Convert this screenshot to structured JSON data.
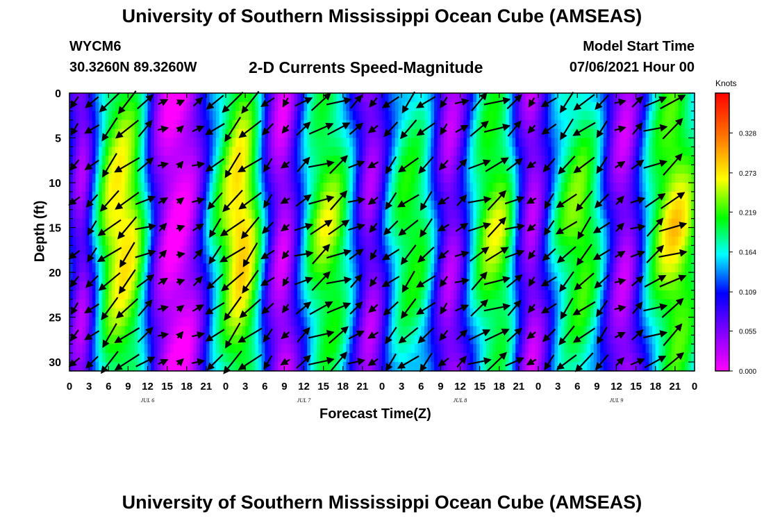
{
  "header": {
    "title": "University of Southern Mississippi Ocean Cube (AMSEAS)",
    "station_id": "WYCM6",
    "station_coords": "30.3260N  89.3260W",
    "subtitle": "2-D Currents Speed-Magnitude",
    "model_label": "Model Start Time",
    "model_value": "07/06/2021 Hour 00"
  },
  "footer": {
    "title": "University of Southern Mississippi Ocean Cube (AMSEAS)"
  },
  "chart_data": {
    "type": "heatmap",
    "title": "2-D Currents Speed-Magnitude",
    "xlabel": "Forecast Time(Z)",
    "ylabel": "Depth (ft)",
    "x_ticks": [
      "0",
      "3",
      "6",
      "9",
      "12",
      "15",
      "18",
      "21",
      "0",
      "3",
      "6",
      "9",
      "12",
      "15",
      "18",
      "21",
      "0",
      "3",
      "6",
      "9",
      "12",
      "15",
      "18",
      "21",
      "0",
      "3",
      "6",
      "9",
      "12",
      "15",
      "18",
      "21",
      "0"
    ],
    "date_labels": [
      "JUL 6",
      "JUL 7",
      "JUL 8",
      "JUL 9"
    ],
    "xlim_hours": [
      0,
      96
    ],
    "y_ticks": [
      0,
      5,
      10,
      15,
      20,
      25,
      30
    ],
    "ylim": [
      0,
      31
    ],
    "y_inverted": true,
    "colorbar": {
      "unit": "Knots",
      "ticks": [
        "0.328",
        "0.273",
        "0.219",
        "0.164",
        "0.109",
        "0.055",
        "0.000"
      ],
      "range": [
        0.0,
        0.383
      ],
      "colors": [
        "#ff00ff",
        "#8000ff",
        "#0000ff",
        "#00ffff",
        "#00ff00",
        "#ffff00",
        "#ff8000",
        "#ff0000"
      ]
    },
    "speed_profile_hours": [
      0,
      1,
      2,
      3,
      4,
      5,
      6,
      7,
      8,
      9,
      10,
      11,
      12,
      13,
      14,
      15,
      16,
      17,
      18,
      19,
      20,
      21,
      22,
      23,
      24,
      25,
      26,
      27,
      28,
      29,
      30,
      31,
      32,
      33,
      34,
      35,
      36,
      37,
      38,
      39,
      40,
      41,
      42,
      43,
      44,
      45,
      46,
      47,
      48,
      49,
      50,
      51,
      52,
      53,
      54,
      55,
      56,
      57,
      58,
      59,
      60,
      61,
      62,
      63,
      64,
      65,
      66,
      67,
      68,
      69,
      70,
      71,
      72,
      73,
      74,
      75,
      76,
      77,
      78,
      79,
      80,
      81,
      82,
      83,
      84,
      85,
      86,
      87,
      88,
      89,
      90,
      91,
      92,
      93,
      94,
      95,
      96
    ],
    "speed_profile_knots": [
      0.12,
      0.07,
      0.05,
      0.09,
      0.16,
      0.22,
      0.27,
      0.29,
      0.3,
      0.29,
      0.27,
      0.22,
      0.16,
      0.09,
      0.05,
      0.02,
      0.01,
      0.01,
      0.02,
      0.04,
      0.08,
      0.13,
      0.18,
      0.22,
      0.26,
      0.29,
      0.31,
      0.3,
      0.27,
      0.21,
      0.14,
      0.08,
      0.04,
      0.03,
      0.06,
      0.11,
      0.16,
      0.21,
      0.24,
      0.26,
      0.26,
      0.25,
      0.22,
      0.18,
      0.13,
      0.08,
      0.05,
      0.06,
      0.1,
      0.15,
      0.19,
      0.22,
      0.23,
      0.23,
      0.22,
      0.19,
      0.14,
      0.09,
      0.05,
      0.05,
      0.08,
      0.13,
      0.18,
      0.22,
      0.25,
      0.26,
      0.26,
      0.24,
      0.19,
      0.12,
      0.07,
      0.04,
      0.06,
      0.1,
      0.15,
      0.19,
      0.22,
      0.24,
      0.25,
      0.25,
      0.23,
      0.2,
      0.15,
      0.1,
      0.06,
      0.04,
      0.05,
      0.09,
      0.14,
      0.19,
      0.23,
      0.26,
      0.28,
      0.29,
      0.28,
      0.26,
      0.23
    ]
  }
}
